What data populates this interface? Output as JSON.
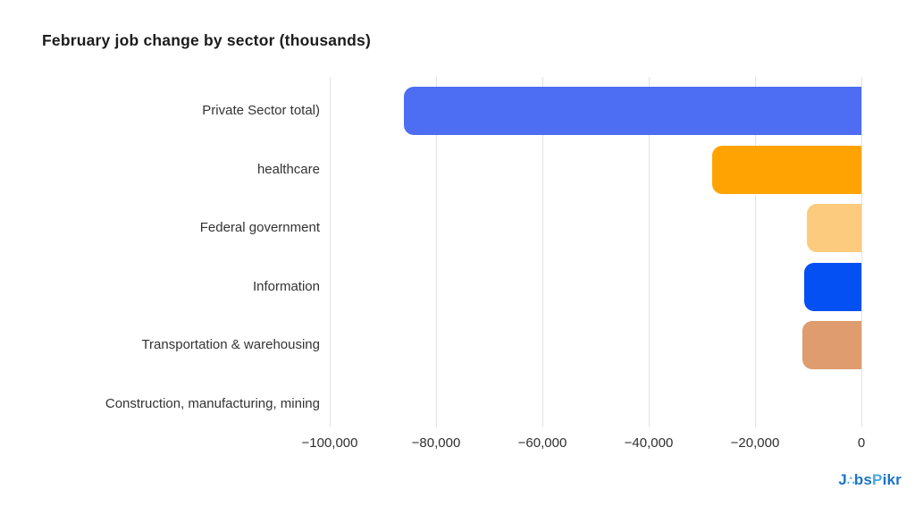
{
  "chart_data": {
    "type": "bar",
    "orientation": "horizontal",
    "title": "February job change by sector (thousands)",
    "categories": [
      "Private Sector total)",
      "healthcare",
      "Federal government",
      "Information",
      "Transportation & warehousing",
      "Construction, manufacturing, mining"
    ],
    "values": [
      -86000,
      -28000,
      -10300,
      -10800,
      -11100,
      0
    ],
    "bar_colors": [
      "#4d6df3",
      "#ffa303",
      "#fccb7e",
      "#0450f2",
      "#de9c6f",
      "#cccccc"
    ],
    "xlim": [
      -100000,
      0
    ],
    "xticks": {
      "values": [
        -100000,
        -80000,
        -60000,
        -40000,
        -20000,
        0
      ],
      "labels": [
        "−100,000",
        "−80,000",
        "−60,000",
        "−40,000",
        "−20,000",
        "0"
      ]
    },
    "xlabel": "",
    "ylabel": "",
    "grid": "vertical-on",
    "legend": "none",
    "background": "#ffffff"
  },
  "footer": {
    "logo": {
      "name": "JobsPikr",
      "part1": "J",
      "o_glyph": "∴",
      "part2": "bs",
      "part3": "P",
      "part4": "ikr",
      "color_primary": "#1b74c9",
      "color_accent": "#47a8de"
    }
  }
}
